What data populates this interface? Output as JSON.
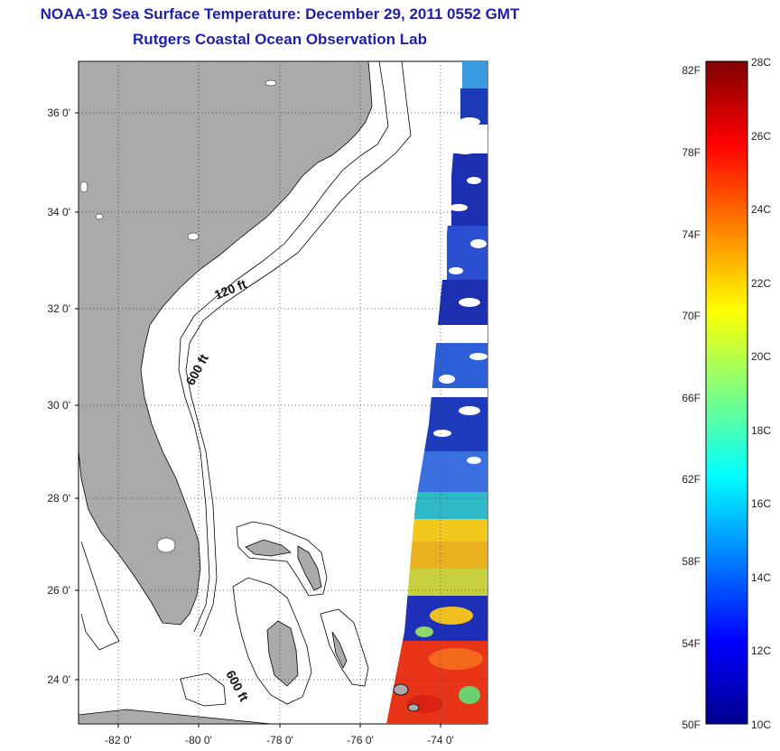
{
  "title": {
    "line1": "NOAA-19 Sea Surface Temperature:  December 29, 2011 0552 GMT",
    "line2": "Rutgers Coastal Ocean Observation Lab"
  },
  "map": {
    "lon_ticks": [
      "-82 0'",
      "-80 0'",
      "-78 0'",
      "-76 0'",
      "-74 0'"
    ],
    "lat_ticks": [
      "36 0'",
      "34 0'",
      "32 0'",
      "30 0'",
      "28 0'",
      "26 0'",
      "24 0'"
    ],
    "land_color": "#aaaaaa",
    "grid": "dotted",
    "contour_labels": [
      "120 ft",
      "600 ft",
      "600 ft"
    ]
  },
  "colorbar": {
    "fahrenheit_labels": [
      "82F",
      "78F",
      "74F",
      "70F",
      "66F",
      "62F",
      "58F",
      "54F",
      "50F"
    ],
    "celsius_labels": [
      "28C",
      "26C",
      "24C",
      "22C",
      "20C",
      "18C",
      "16C",
      "14C",
      "12C",
      "10C"
    ],
    "range_c": [
      10,
      28
    ],
    "colormap": "jet"
  }
}
